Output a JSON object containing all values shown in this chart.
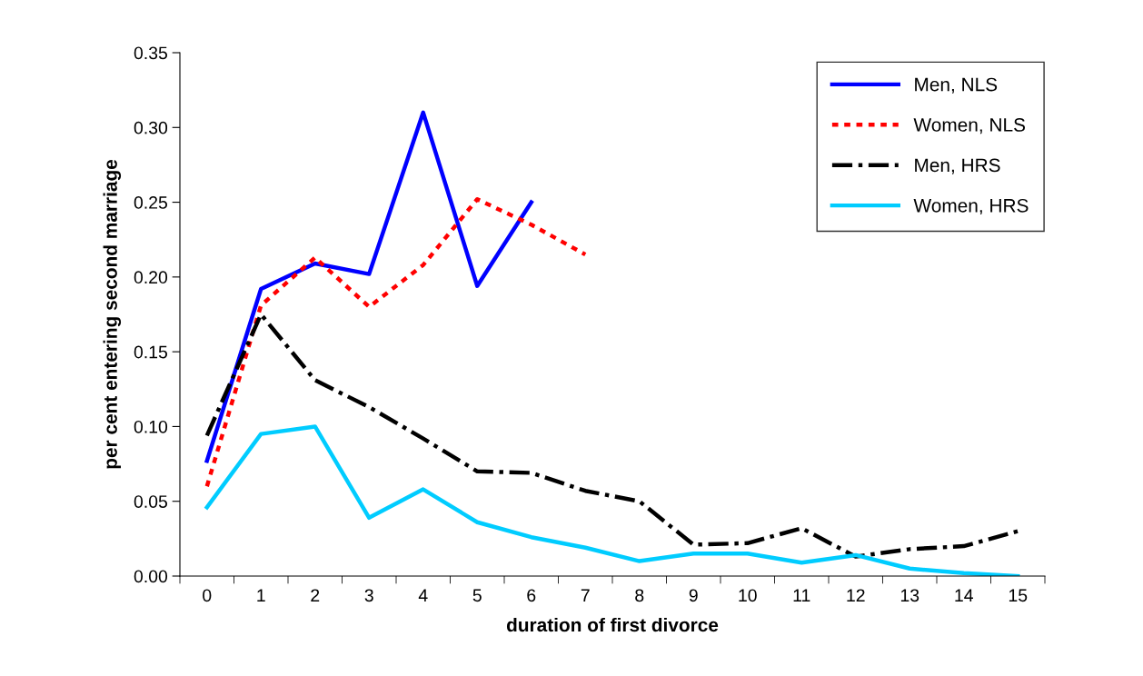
{
  "chart_data": {
    "type": "line",
    "xlabel": "duration of first divorce",
    "ylabel": "per cent entering second marriage",
    "categories": [
      "0",
      "1",
      "2",
      "3",
      "4",
      "5",
      "6",
      "7",
      "8",
      "9",
      "10",
      "11",
      "12",
      "13",
      "14",
      "15"
    ],
    "series": [
      {
        "name": "Men, NLS",
        "color": "#0000ff",
        "line_style": "solid",
        "values": [
          0.077,
          0.192,
          0.209,
          0.202,
          0.31,
          0.194,
          0.25,
          null,
          null,
          null,
          null,
          null,
          null,
          null,
          null,
          null
        ]
      },
      {
        "name": "Women, NLS",
        "color": "#ff0000",
        "line_style": "dotted",
        "values": [
          0.06,
          0.181,
          0.213,
          0.18,
          0.208,
          0.252,
          0.235,
          0.215,
          null,
          null,
          null,
          null,
          null,
          null,
          null,
          null
        ]
      },
      {
        "name": "Men, HRS",
        "color": "#000000",
        "line_style": "dashed",
        "values": [
          0.094,
          0.175,
          0.131,
          0.113,
          0.092,
          0.07,
          0.069,
          0.057,
          0.05,
          0.021,
          0.022,
          0.032,
          0.013,
          0.018,
          0.02,
          0.03
        ]
      },
      {
        "name": "Women, HRS",
        "color": "#00ccff",
        "line_style": "solid",
        "values": [
          0.046,
          0.095,
          0.1,
          0.039,
          0.058,
          0.036,
          0.026,
          0.019,
          0.01,
          0.015,
          0.015,
          0.009,
          0.014,
          0.005,
          0.002,
          0.0
        ]
      }
    ],
    "ylim": [
      0,
      0.35
    ],
    "yticks": [
      {
        "value": 0,
        "label": "0.00"
      },
      {
        "value": 0.05,
        "label": "0.05"
      },
      {
        "value": 0.1,
        "label": "0.10"
      },
      {
        "value": 0.15,
        "label": "0.15"
      },
      {
        "value": 0.2,
        "label": "0.20"
      },
      {
        "value": 0.25,
        "label": "0.25"
      },
      {
        "value": 0.3,
        "label": "0.30"
      },
      {
        "value": 0.35,
        "label": "0.35"
      }
    ],
    "grid": false,
    "legend": "top right",
    "marker": "none"
  }
}
